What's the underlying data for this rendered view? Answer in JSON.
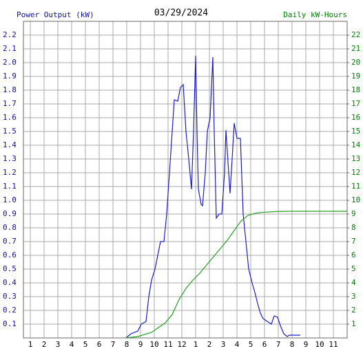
{
  "chart_data": {
    "type": "line",
    "title": "03/29/2024",
    "y_label": "Power Output (kW)",
    "y2_label": "Daily kW-Hours",
    "xlim": [
      0.5,
      24
    ],
    "xticks": [
      1,
      2,
      3,
      4,
      5,
      6,
      7,
      8,
      9,
      10,
      11,
      12,
      {
        "value": 13,
        "label": "1"
      },
      {
        "value": 14,
        "label": "2"
      },
      {
        "value": 15,
        "label": "3"
      },
      {
        "value": 16,
        "label": "4"
      },
      {
        "value": 17,
        "label": "5"
      },
      {
        "value": 18,
        "label": "6"
      },
      {
        "value": 19,
        "label": "7"
      },
      {
        "value": 20,
        "label": "8"
      },
      {
        "value": 21,
        "label": "9"
      },
      {
        "value": 22,
        "label": "10"
      },
      {
        "value": 23,
        "label": "11"
      }
    ],
    "ylim": [
      0,
      2.3
    ],
    "yticks": [
      0.1,
      0.2,
      0.3,
      0.4,
      0.5,
      0.6,
      0.7,
      0.8,
      0.9,
      {
        "value": 1,
        "label": "1.0"
      },
      1.1,
      1.2,
      1.3,
      1.4,
      1.5,
      1.6,
      1.7,
      1.8,
      1.9,
      {
        "value": 2,
        "label": "2.0"
      },
      2.1,
      2.2
    ],
    "y2lim": [
      0,
      23
    ],
    "y2ticks": [
      1,
      2,
      3,
      4,
      5,
      6,
      7,
      8,
      9,
      10,
      11,
      12,
      13,
      14,
      15,
      16,
      17,
      18,
      19,
      20,
      21,
      22
    ],
    "grid": true,
    "y_color": "#1010a0",
    "y2_color": "#008000",
    "series": [
      {
        "name": "Power Output (kW)",
        "color": "#1a1ac8",
        "axis": "y",
        "x": [
          7.95,
          8.3,
          8.8,
          9.05,
          9.4,
          9.6,
          9.8,
          10.05,
          10.25,
          10.45,
          10.7,
          10.9,
          11.1,
          11.3,
          11.45,
          11.7,
          11.9,
          12.1,
          12.3,
          12.5,
          12.7,
          12.85,
          13.0,
          13.1,
          13.2,
          13.4,
          13.5,
          13.7,
          13.85,
          14.05,
          14.25,
          14.35,
          14.5,
          14.7,
          14.9,
          15.1,
          15.2,
          15.4,
          15.5,
          15.65,
          15.8,
          16.0,
          16.25,
          16.45,
          16.65,
          16.85,
          17.1,
          17.3,
          17.5,
          17.7,
          17.9,
          18.2,
          18.5,
          18.7,
          18.95,
          19.15,
          19.4,
          19.65,
          19.8,
          20.6
        ],
        "values": [
          0,
          0.03,
          0.05,
          0.1,
          0.12,
          0.3,
          0.42,
          0.5,
          0.6,
          0.7,
          0.7,
          0.9,
          1.2,
          1.5,
          1.73,
          1.72,
          1.82,
          1.84,
          1.5,
          1.3,
          1.08,
          1.5,
          2.05,
          1.5,
          1.08,
          0.97,
          0.96,
          1.2,
          1.5,
          1.6,
          2.04,
          1.5,
          0.87,
          0.9,
          0.9,
          1.2,
          1.51,
          1.2,
          1.05,
          1.3,
          1.56,
          1.45,
          1.45,
          0.9,
          0.7,
          0.5,
          0.4,
          0.33,
          0.25,
          0.18,
          0.14,
          0.12,
          0.1,
          0.16,
          0.15,
          0.09,
          0.03,
          0.01,
          0.02,
          0.02
        ]
      },
      {
        "name": "Daily kW-Hours",
        "color": "#22a022",
        "axis": "y2",
        "x": [
          7.95,
          8.8,
          9.8,
          10.8,
          11.3,
          11.8,
          12.3,
          12.8,
          13.3,
          13.8,
          14.3,
          14.8,
          15.3,
          15.8,
          16.3,
          16.8,
          17.3,
          17.8,
          18.8,
          19.8,
          24
        ],
        "values": [
          0,
          0.1,
          0.4,
          1.1,
          1.7,
          2.8,
          3.6,
          4.2,
          4.7,
          5.3,
          5.9,
          6.5,
          7.1,
          7.8,
          8.5,
          8.9,
          9.05,
          9.12,
          9.18,
          9.2,
          9.2
        ]
      }
    ]
  }
}
